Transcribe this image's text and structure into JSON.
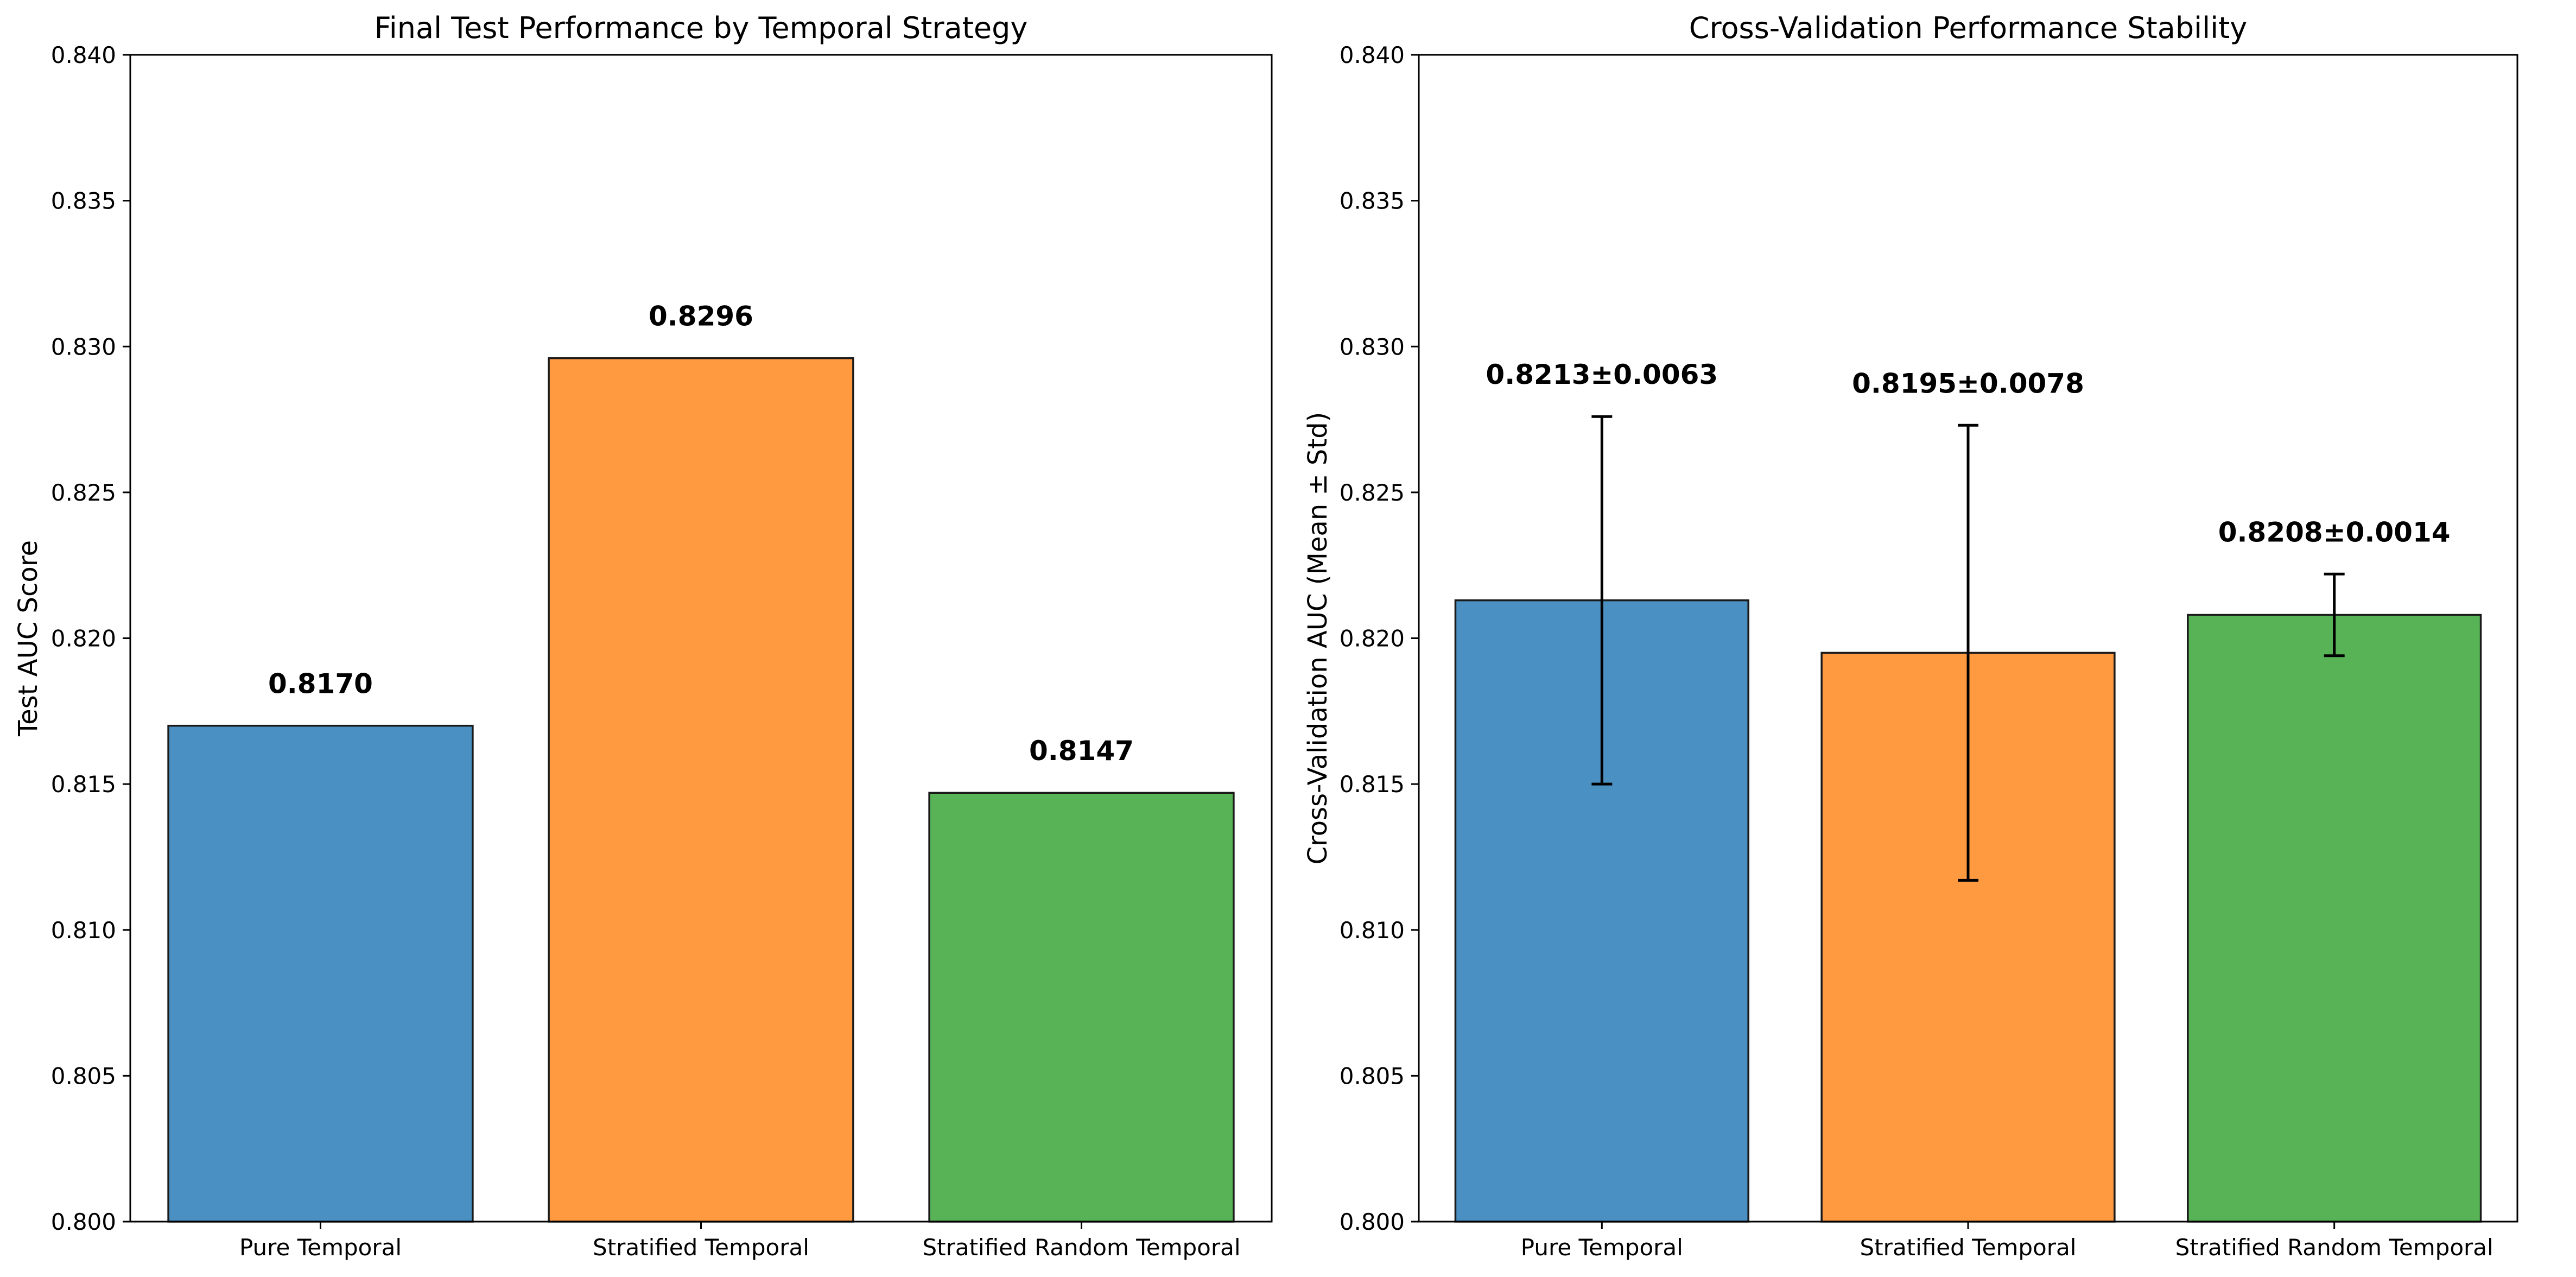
{
  "chart_data": [
    {
      "type": "bar",
      "title": "Final Test Performance by Temporal Strategy",
      "xlabel": "",
      "ylabel": "Test AUC Score",
      "categories": [
        "Pure Temporal",
        "Stratified Temporal",
        "Stratified Random Temporal"
      ],
      "values": [
        0.817,
        0.8296,
        0.8147
      ],
      "data_labels": [
        "0.8170",
        "0.8296",
        "0.8147"
      ],
      "ylim": [
        0.8,
        0.84
      ],
      "yticks": [
        "0.800",
        "0.805",
        "0.810",
        "0.815",
        "0.820",
        "0.825",
        "0.830",
        "0.835",
        "0.840"
      ],
      "colors": [
        "#4a90c2",
        "#ff9a40",
        "#58b357"
      ],
      "grid": false
    },
    {
      "type": "bar",
      "title": "Cross-Validation Performance Stability",
      "xlabel": "",
      "ylabel": "Cross-Validation AUC (Mean ± Std)",
      "categories": [
        "Pure Temporal",
        "Stratified Temporal",
        "Stratified Random Temporal"
      ],
      "values": [
        0.8213,
        0.8195,
        0.8208
      ],
      "errors": [
        0.0063,
        0.0078,
        0.0014
      ],
      "data_labels": [
        "0.8213±0.0063",
        "0.8195±0.0078",
        "0.8208±0.0014"
      ],
      "ylim": [
        0.8,
        0.84
      ],
      "yticks": [
        "0.800",
        "0.805",
        "0.810",
        "0.815",
        "0.820",
        "0.825",
        "0.830",
        "0.835",
        "0.840"
      ],
      "colors": [
        "#4a90c2",
        "#ff9a40",
        "#58b357"
      ],
      "grid": false
    }
  ]
}
